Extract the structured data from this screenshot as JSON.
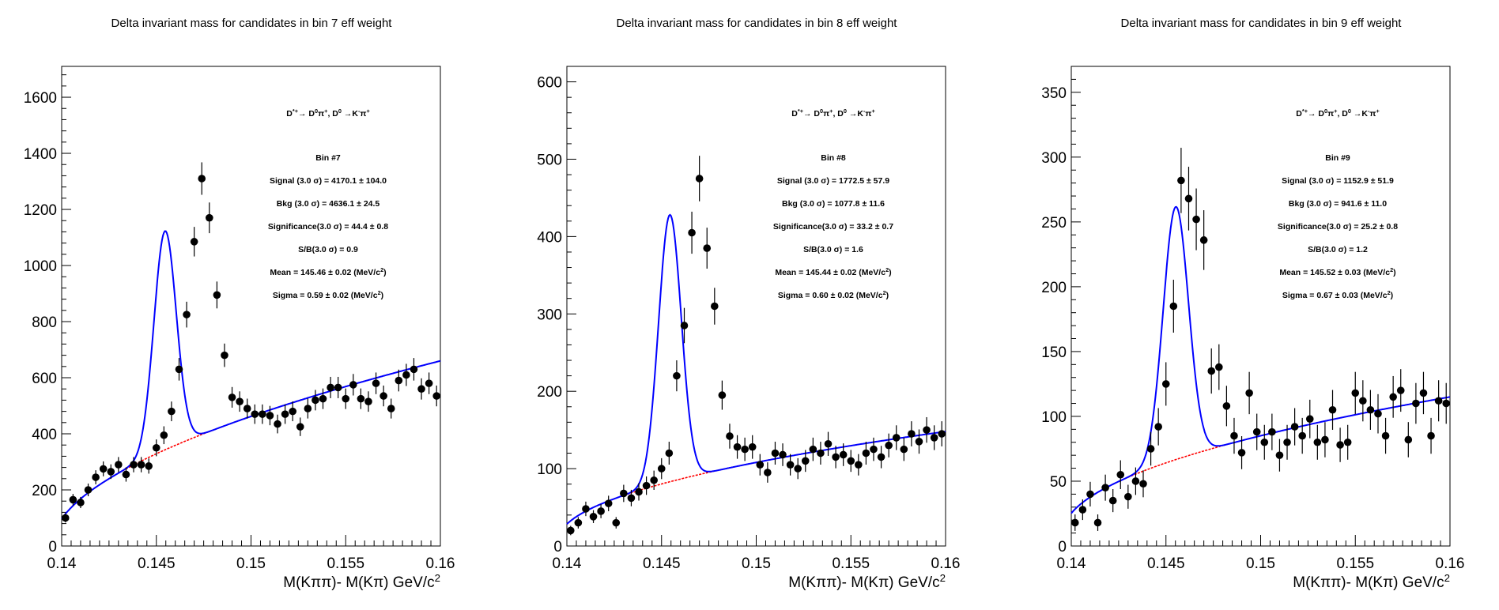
{
  "decay_label": {
    "main": "D*+→ D0π+, D0 →K-π+",
    "parts": [
      "D",
      "*+",
      "→ D",
      "0",
      "π",
      "+",
      ", D",
      "0",
      " →K",
      "-",
      "π",
      "+"
    ]
  },
  "colors": {
    "fit": "#0000ff",
    "background": "#ff0000",
    "points": "#000000",
    "frame": "#000000"
  },
  "chart_data": [
    {
      "type": "scatter",
      "title": "Delta invariant mass for candidates in bin 7 eff weight",
      "xlabel": "M(Kππ)- M(Kπ) GeV/c2",
      "xlabel_parts": [
        "M(Kππ)- M(Kπ) GeV/c",
        "2"
      ],
      "xlim": [
        0.14,
        0.16
      ],
      "ylim": [
        0,
        1710
      ],
      "xticks": [
        "0.14",
        "0.145",
        "0.15",
        "0.155",
        "0.16"
      ],
      "yticks": [
        "0",
        "200",
        "400",
        "600",
        "800",
        "1000",
        "1200",
        "1400",
        "1600"
      ],
      "legend": "top-right",
      "stats": {
        "bin": "Bin #7",
        "signal": "Signal (3.0 σ) = 4170.1 ± 104.0",
        "bkg": "Bkg (3.0 σ) = 4636.1 ± 24.5",
        "significance": "Significance(3.0 σ) = 44.4 ± 0.8",
        "sb": "S/B(3.0 σ) = 0.9",
        "mean": [
          "Mean = 145.46 ± 0.02 (MeV/c",
          "2",
          ")"
        ],
        "sigma": [
          "Sigma = 0.59 ± 0.02 (MeV/c",
          "2",
          ")"
        ]
      },
      "fit": {
        "mu": 0.14546,
        "sigma": 0.00059,
        "amp": 780,
        "bkg_amp": 640,
        "bkg_pow": 0.55,
        "bkg_offset": 20
      },
      "points": [
        [
          0.1402,
          100
        ],
        [
          0.1406,
          165
        ],
        [
          0.141,
          155
        ],
        [
          0.1414,
          200
        ],
        [
          0.1418,
          245
        ],
        [
          0.1422,
          275
        ],
        [
          0.1426,
          265
        ],
        [
          0.143,
          290
        ],
        [
          0.1434,
          255
        ],
        [
          0.1438,
          290
        ],
        [
          0.1442,
          290
        ],
        [
          0.1446,
          285
        ],
        [
          0.145,
          350
        ],
        [
          0.1454,
          395
        ],
        [
          0.1458,
          480
        ],
        [
          0.1462,
          630
        ],
        [
          0.1466,
          825
        ],
        [
          0.147,
          1085
        ],
        [
          0.1474,
          1310
        ],
        [
          0.1478,
          1170
        ],
        [
          0.1482,
          895
        ],
        [
          0.1486,
          680
        ],
        [
          0.149,
          530
        ],
        [
          0.1494,
          515
        ],
        [
          0.1498,
          490
        ],
        [
          0.1502,
          470
        ],
        [
          0.1506,
          470
        ],
        [
          0.151,
          465
        ],
        [
          0.1514,
          435
        ],
        [
          0.1518,
          470
        ],
        [
          0.1522,
          480
        ],
        [
          0.1526,
          425
        ],
        [
          0.153,
          490
        ],
        [
          0.1534,
          520
        ],
        [
          0.1538,
          525
        ],
        [
          0.1542,
          565
        ],
        [
          0.1546,
          565
        ],
        [
          0.155,
          525
        ],
        [
          0.1554,
          575
        ],
        [
          0.1558,
          525
        ],
        [
          0.1562,
          515
        ],
        [
          0.1566,
          580
        ],
        [
          0.157,
          535
        ],
        [
          0.1574,
          490
        ],
        [
          0.1578,
          590
        ],
        [
          0.1582,
          610
        ],
        [
          0.1586,
          630
        ],
        [
          0.159,
          560
        ],
        [
          0.1594,
          580
        ],
        [
          0.1598,
          535
        ]
      ]
    },
    {
      "type": "scatter",
      "title": "Delta invariant mass for candidates in bin 8 eff weight",
      "xlabel": "M(Kππ)- M(Kπ) GeV/c2",
      "xlabel_parts": [
        "M(Kππ)- M(Kπ) GeV/c",
        "2"
      ],
      "xlim": [
        0.14,
        0.16
      ],
      "ylim": [
        0,
        620
      ],
      "xticks": [
        "0.14",
        "0.145",
        "0.15",
        "0.155",
        "0.16"
      ],
      "yticks": [
        "0",
        "100",
        "200",
        "300",
        "400",
        "500",
        "600"
      ],
      "legend": "top-right",
      "stats": {
        "bin": "Bin #8",
        "signal": "Signal (3.0 σ) = 1772.5 ± 57.9",
        "bkg": "Bkg (3.0 σ) = 1077.8 ± 11.6",
        "significance": "Significance(3.0 σ) = 33.2 ± 0.7",
        "sb": "S/B(3.0 σ) = 1.6",
        "mean": [
          "Mean = 145.44 ± 0.02 (MeV/c",
          "2",
          ")"
        ],
        "sigma": [
          "Sigma = 0.60 ± 0.02 (MeV/c",
          "2",
          ")"
        ]
      },
      "fit": {
        "mu": 0.14544,
        "sigma": 0.0006,
        "amp": 345,
        "bkg_amp": 140,
        "bkg_pow": 0.5,
        "bkg_offset": 8
      },
      "points": [
        [
          0.1402,
          20
        ],
        [
          0.1406,
          30
        ],
        [
          0.141,
          48
        ],
        [
          0.1414,
          38
        ],
        [
          0.1418,
          45
        ],
        [
          0.1422,
          55
        ],
        [
          0.1426,
          30
        ],
        [
          0.143,
          68
        ],
        [
          0.1434,
          62
        ],
        [
          0.1438,
          70
        ],
        [
          0.1442,
          78
        ],
        [
          0.1446,
          85
        ],
        [
          0.145,
          100
        ],
        [
          0.1454,
          120
        ],
        [
          0.1458,
          220
        ],
        [
          0.1462,
          285
        ],
        [
          0.1466,
          405
        ],
        [
          0.147,
          475
        ],
        [
          0.1474,
          385
        ],
        [
          0.1478,
          310
        ],
        [
          0.1482,
          195
        ],
        [
          0.1486,
          142
        ],
        [
          0.149,
          128
        ],
        [
          0.1494,
          125
        ],
        [
          0.1498,
          128
        ],
        [
          0.1502,
          105
        ],
        [
          0.1506,
          95
        ],
        [
          0.151,
          120
        ],
        [
          0.1514,
          118
        ],
        [
          0.1518,
          105
        ],
        [
          0.1522,
          100
        ],
        [
          0.1526,
          110
        ],
        [
          0.153,
          125
        ],
        [
          0.1534,
          120
        ],
        [
          0.1538,
          132
        ],
        [
          0.1542,
          115
        ],
        [
          0.1546,
          118
        ],
        [
          0.155,
          110
        ],
        [
          0.1554,
          105
        ],
        [
          0.1558,
          120
        ],
        [
          0.1562,
          125
        ],
        [
          0.1566,
          115
        ],
        [
          0.157,
          130
        ],
        [
          0.1574,
          140
        ],
        [
          0.1578,
          125
        ],
        [
          0.1582,
          145
        ],
        [
          0.1586,
          135
        ],
        [
          0.159,
          150
        ],
        [
          0.1594,
          140
        ],
        [
          0.1598,
          145
        ]
      ]
    },
    {
      "type": "scatter",
      "title": "Delta invariant mass for candidates in bin 9 eff weight",
      "xlabel": "M(Kππ)- M(Kπ) GeV/c2",
      "xlabel_parts": [
        "M(Kππ)- M(Kπ) GeV/c",
        "2"
      ],
      "xlim": [
        0.14,
        0.16
      ],
      "ylim": [
        0,
        370
      ],
      "xticks": [
        "0.14",
        "0.145",
        "0.15",
        "0.155",
        "0.16"
      ],
      "yticks": [
        "0",
        "50",
        "100",
        "150",
        "200",
        "250",
        "300",
        "350"
      ],
      "legend": "top-right",
      "stats": {
        "bin": "Bin #9",
        "signal": "Signal (3.0 σ) = 1152.9 ± 51.9",
        "bkg": "Bkg (3.0 σ) = 941.6 ± 11.0",
        "significance": "Significance(3.0 σ) = 25.2 ± 0.8",
        "sb": "S/B(3.0 σ) = 1.2",
        "mean": [
          "Mean = 145.52 ± 0.03 (MeV/c",
          "2",
          ")"
        ],
        "sigma": [
          "Sigma = 0.67 ± 0.03 (MeV/c",
          "2",
          ")"
        ]
      },
      "fit": {
        "mu": 0.14552,
        "sigma": 0.00067,
        "amp": 195,
        "bkg_amp": 105,
        "bkg_pow": 0.5,
        "bkg_offset": 10
      },
      "points": [
        [
          0.1402,
          18
        ],
        [
          0.1406,
          28
        ],
        [
          0.141,
          40
        ],
        [
          0.1414,
          18
        ],
        [
          0.1418,
          45
        ],
        [
          0.1422,
          35
        ],
        [
          0.1426,
          55
        ],
        [
          0.143,
          38
        ],
        [
          0.1434,
          50
        ],
        [
          0.1438,
          48
        ],
        [
          0.1442,
          75
        ],
        [
          0.1446,
          92
        ],
        [
          0.145,
          125
        ],
        [
          0.1454,
          185
        ],
        [
          0.1458,
          282
        ],
        [
          0.1462,
          268
        ],
        [
          0.1466,
          252
        ],
        [
          0.147,
          236
        ],
        [
          0.1474,
          135
        ],
        [
          0.1478,
          138
        ],
        [
          0.1482,
          108
        ],
        [
          0.1486,
          85
        ],
        [
          0.149,
          72
        ],
        [
          0.1494,
          118
        ],
        [
          0.1498,
          88
        ],
        [
          0.1502,
          80
        ],
        [
          0.1506,
          88
        ],
        [
          0.151,
          70
        ],
        [
          0.1514,
          80
        ],
        [
          0.1518,
          92
        ],
        [
          0.1522,
          85
        ],
        [
          0.1526,
          98
        ],
        [
          0.153,
          80
        ],
        [
          0.1534,
          82
        ],
        [
          0.1538,
          105
        ],
        [
          0.1542,
          78
        ],
        [
          0.1546,
          80
        ],
        [
          0.155,
          118
        ],
        [
          0.1554,
          112
        ],
        [
          0.1558,
          105
        ],
        [
          0.1562,
          102
        ],
        [
          0.1566,
          85
        ],
        [
          0.157,
          115
        ],
        [
          0.1574,
          120
        ],
        [
          0.1578,
          82
        ],
        [
          0.1582,
          110
        ],
        [
          0.1586,
          118
        ],
        [
          0.159,
          85
        ],
        [
          0.1594,
          112
        ],
        [
          0.1598,
          110
        ]
      ]
    }
  ]
}
